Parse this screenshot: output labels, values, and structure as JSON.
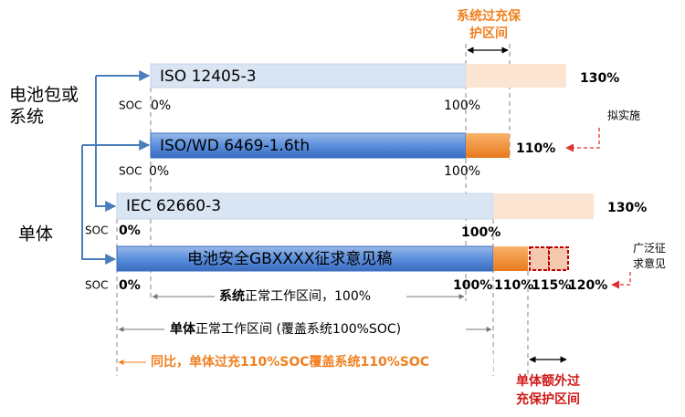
{
  "header": {
    "top_label": [
      "系统过充保",
      "护区间"
    ]
  },
  "groups": [
    {
      "label": [
        "电池包或",
        "系统"
      ]
    },
    {
      "label": [
        "单体"
      ]
    }
  ],
  "bars": [
    {
      "name": "ISO 12405-3",
      "soc_label": "SOC",
      "ticks": [
        "0%",
        "100%"
      ],
      "end": "130%"
    },
    {
      "name": "ISO/WD 6469-1.6th",
      "soc_label": "SOC",
      "ticks": [
        "0%",
        "100%"
      ],
      "end": "110%"
    },
    {
      "name": "IEC 62660-3",
      "soc_label": "SOC",
      "ticks": [
        "0%",
        "100%"
      ],
      "end": "130%"
    },
    {
      "name": "电池安全GBXXXX征求意见稿",
      "soc_label": "SOC",
      "ticks": [
        "0%",
        "100%",
        "110%",
        "115%",
        "120%"
      ]
    }
  ],
  "notes": [
    {
      "lines": [
        "拟实施"
      ]
    },
    {
      "lines": [
        "广泛征",
        "求意见"
      ]
    }
  ],
  "ranges": [
    {
      "parts": [
        "系统",
        "正常工作区间，100%"
      ]
    },
    {
      "parts": [
        "单体",
        "正常工作区间 (覆盖系统100%SOC)"
      ]
    },
    {
      "parts": [
        "同比，单体过充110%SOC覆盖系统110%SOC"
      ]
    }
  ],
  "bottom_label": [
    "单体额外过",
    "充保护区间"
  ]
}
